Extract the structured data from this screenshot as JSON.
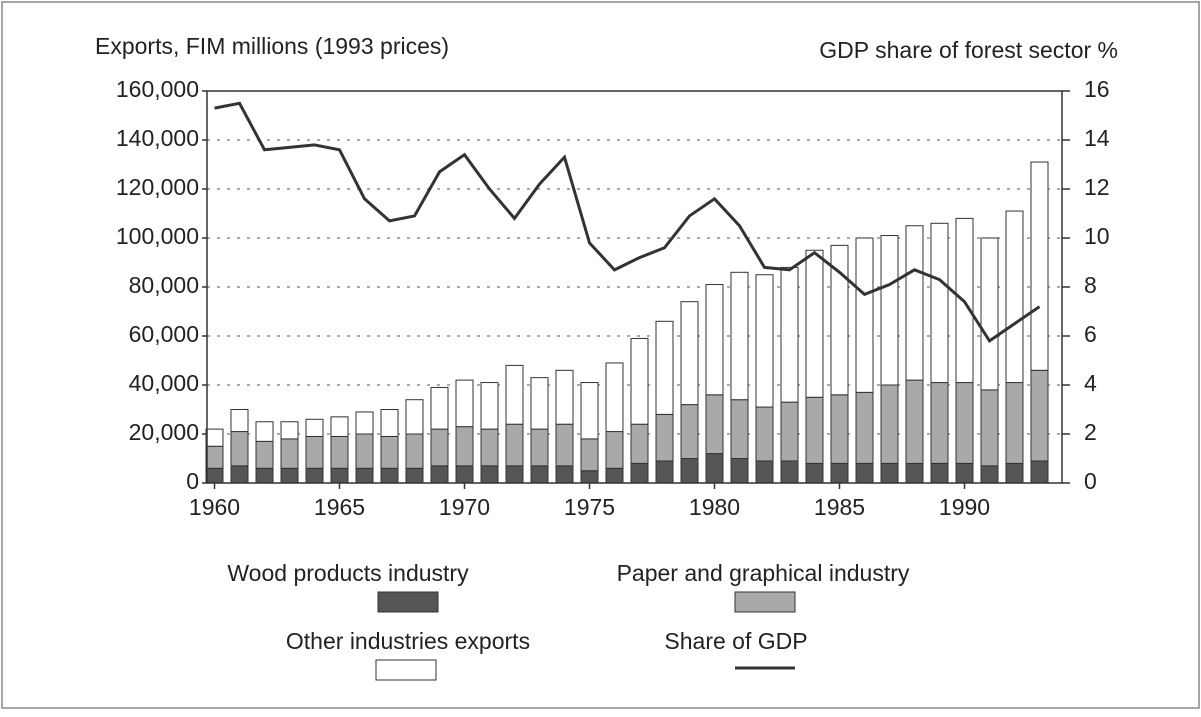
{
  "chart_data": {
    "type": "bar",
    "stacked": true,
    "y_label": "Exports, FIM millions (1993 prices)",
    "y2_label": "GDP share of forest sector %",
    "x": [
      1960,
      1961,
      1962,
      1963,
      1964,
      1965,
      1966,
      1967,
      1968,
      1969,
      1970,
      1971,
      1972,
      1973,
      1974,
      1975,
      1976,
      1977,
      1978,
      1979,
      1980,
      1981,
      1982,
      1983,
      1984,
      1985,
      1986,
      1987,
      1988,
      1989,
      1990,
      1991,
      1992,
      1993
    ],
    "xlim": [
      1959.7,
      1993.9
    ],
    "xticks": [
      1960,
      1965,
      1970,
      1975,
      1980,
      1985,
      1990
    ],
    "ylim": [
      0,
      160000
    ],
    "yticks": [
      0,
      {
        "value": 20000,
        "label": "20,000"
      },
      {
        "value": 40000,
        "label": "40,000"
      },
      {
        "value": 60000,
        "label": "60,000"
      },
      {
        "value": 80000,
        "label": "80,000"
      },
      {
        "value": 100000,
        "label": "100,000"
      },
      {
        "value": 120000,
        "label": "120,000"
      },
      {
        "value": 140000,
        "label": "140,000"
      },
      {
        "value": 160000,
        "label": "160,000"
      }
    ],
    "y2lim": [
      0,
      16
    ],
    "y2ticks": [
      0,
      2,
      4,
      6,
      8,
      10,
      12,
      14,
      16
    ],
    "grid": true,
    "series": [
      {
        "name": "Wood products industry",
        "type": "bar",
        "color": "#555555",
        "values": [
          6000,
          7000,
          6000,
          6000,
          6000,
          6000,
          6000,
          6000,
          6000,
          7000,
          7000,
          7000,
          7000,
          7000,
          7000,
          5000,
          6000,
          8000,
          9000,
          10000,
          12000,
          10000,
          9000,
          9000,
          8000,
          8000,
          8000,
          8000,
          8000,
          8000,
          8000,
          7000,
          8000,
          9000
        ]
      },
      {
        "name": "Paper and graphical industry",
        "type": "bar",
        "color": "#a9a9a9",
        "values": [
          9000,
          14000,
          11000,
          12000,
          13000,
          13000,
          14000,
          13000,
          14000,
          15000,
          16000,
          15000,
          17000,
          15000,
          17000,
          13000,
          15000,
          16000,
          19000,
          22000,
          24000,
          24000,
          22000,
          24000,
          27000,
          28000,
          29000,
          32000,
          34000,
          33000,
          33000,
          31000,
          33000,
          37000
        ]
      },
      {
        "name": "Other industries exports",
        "type": "bar",
        "color": "#ffffff",
        "values": [
          7000,
          9000,
          8000,
          7000,
          7000,
          8000,
          9000,
          11000,
          14000,
          17000,
          19000,
          19000,
          24000,
          21000,
          22000,
          23000,
          28000,
          35000,
          38000,
          42000,
          45000,
          52000,
          54000,
          55000,
          60000,
          61000,
          63000,
          61000,
          63000,
          65000,
          67000,
          62000,
          70000,
          85000
        ]
      },
      {
        "name": "Share of GDP",
        "type": "line",
        "axis": "y2",
        "color": "#333333",
        "values": [
          15.3,
          15.5,
          13.6,
          13.7,
          13.8,
          13.6,
          11.6,
          10.7,
          10.9,
          12.7,
          13.4,
          12.0,
          10.8,
          12.2,
          13.3,
          9.8,
          8.7,
          9.2,
          9.6,
          10.9,
          11.6,
          10.5,
          8.8,
          8.7,
          9.4,
          8.6,
          7.7,
          8.1,
          8.7,
          8.3,
          7.4,
          5.8,
          6.5,
          7.2
        ]
      }
    ]
  }
}
